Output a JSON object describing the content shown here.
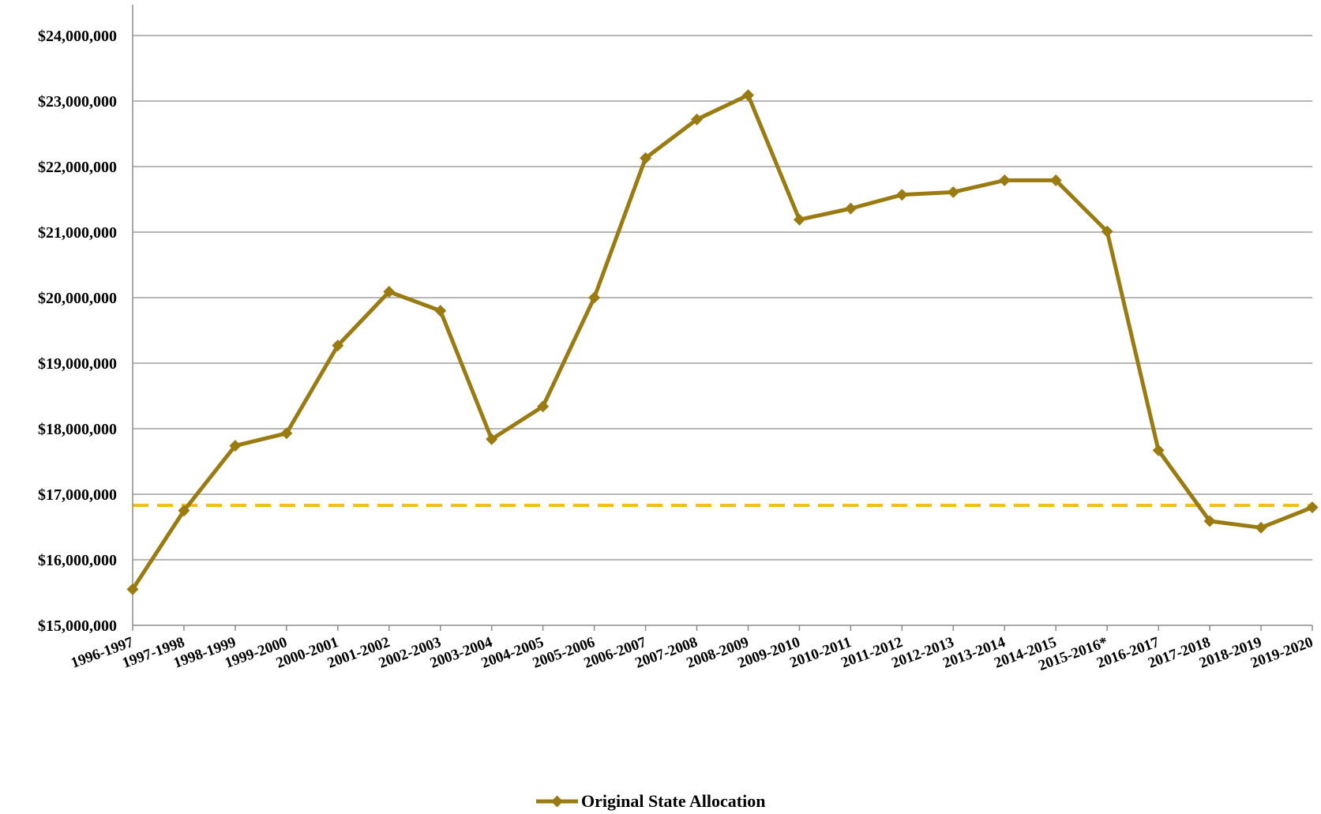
{
  "chart_data": {
    "type": "line",
    "title": "",
    "xlabel": "",
    "ylabel": "",
    "categories": [
      "1996-1997",
      "1997-1998",
      "1998-1999",
      "1999-2000",
      "2000-2001",
      "2001-2002",
      "2002-2003",
      "2003-2004",
      "2004-2005",
      "2005-2006",
      "2006-2007",
      "2007-2008",
      "2008-2009",
      "2009-2010",
      "2010-2011",
      "2011-2012",
      "2012-2013",
      "2013-2014",
      "2014-2015",
      "2015-2016*",
      "2016-2017",
      "2017-2018",
      "2018-2019",
      "2019-2020"
    ],
    "series": [
      {
        "name": "Original State Allocation",
        "color": "#9A7B12",
        "marker": "diamond",
        "values": [
          15550000,
          16750000,
          17740000,
          17930000,
          19270000,
          20090000,
          19800000,
          17840000,
          18340000,
          20000000,
          22130000,
          22720000,
          23090000,
          21190000,
          21360000,
          21570000,
          21610000,
          21790000,
          21790000,
          21010000,
          17670000,
          16590000,
          16490000,
          16800000
        ]
      }
    ],
    "reference_line": {
      "value": 16830000,
      "style": "dashed",
      "color": "#F2BE0E"
    },
    "ylim": [
      15000000,
      24500000
    ],
    "yticks": [
      15000000,
      16000000,
      17000000,
      18000000,
      19000000,
      20000000,
      21000000,
      22000000,
      23000000,
      24000000
    ],
    "ytick_labels": [
      "$15,000,000",
      "$16,000,000",
      "$17,000,000",
      "$18,000,000",
      "$19,000,000",
      "$20,000,000",
      "$21,000,000",
      "$22,000,000",
      "$23,000,000",
      "$24,000,000"
    ],
    "grid": true,
    "legend_position": "bottom"
  }
}
